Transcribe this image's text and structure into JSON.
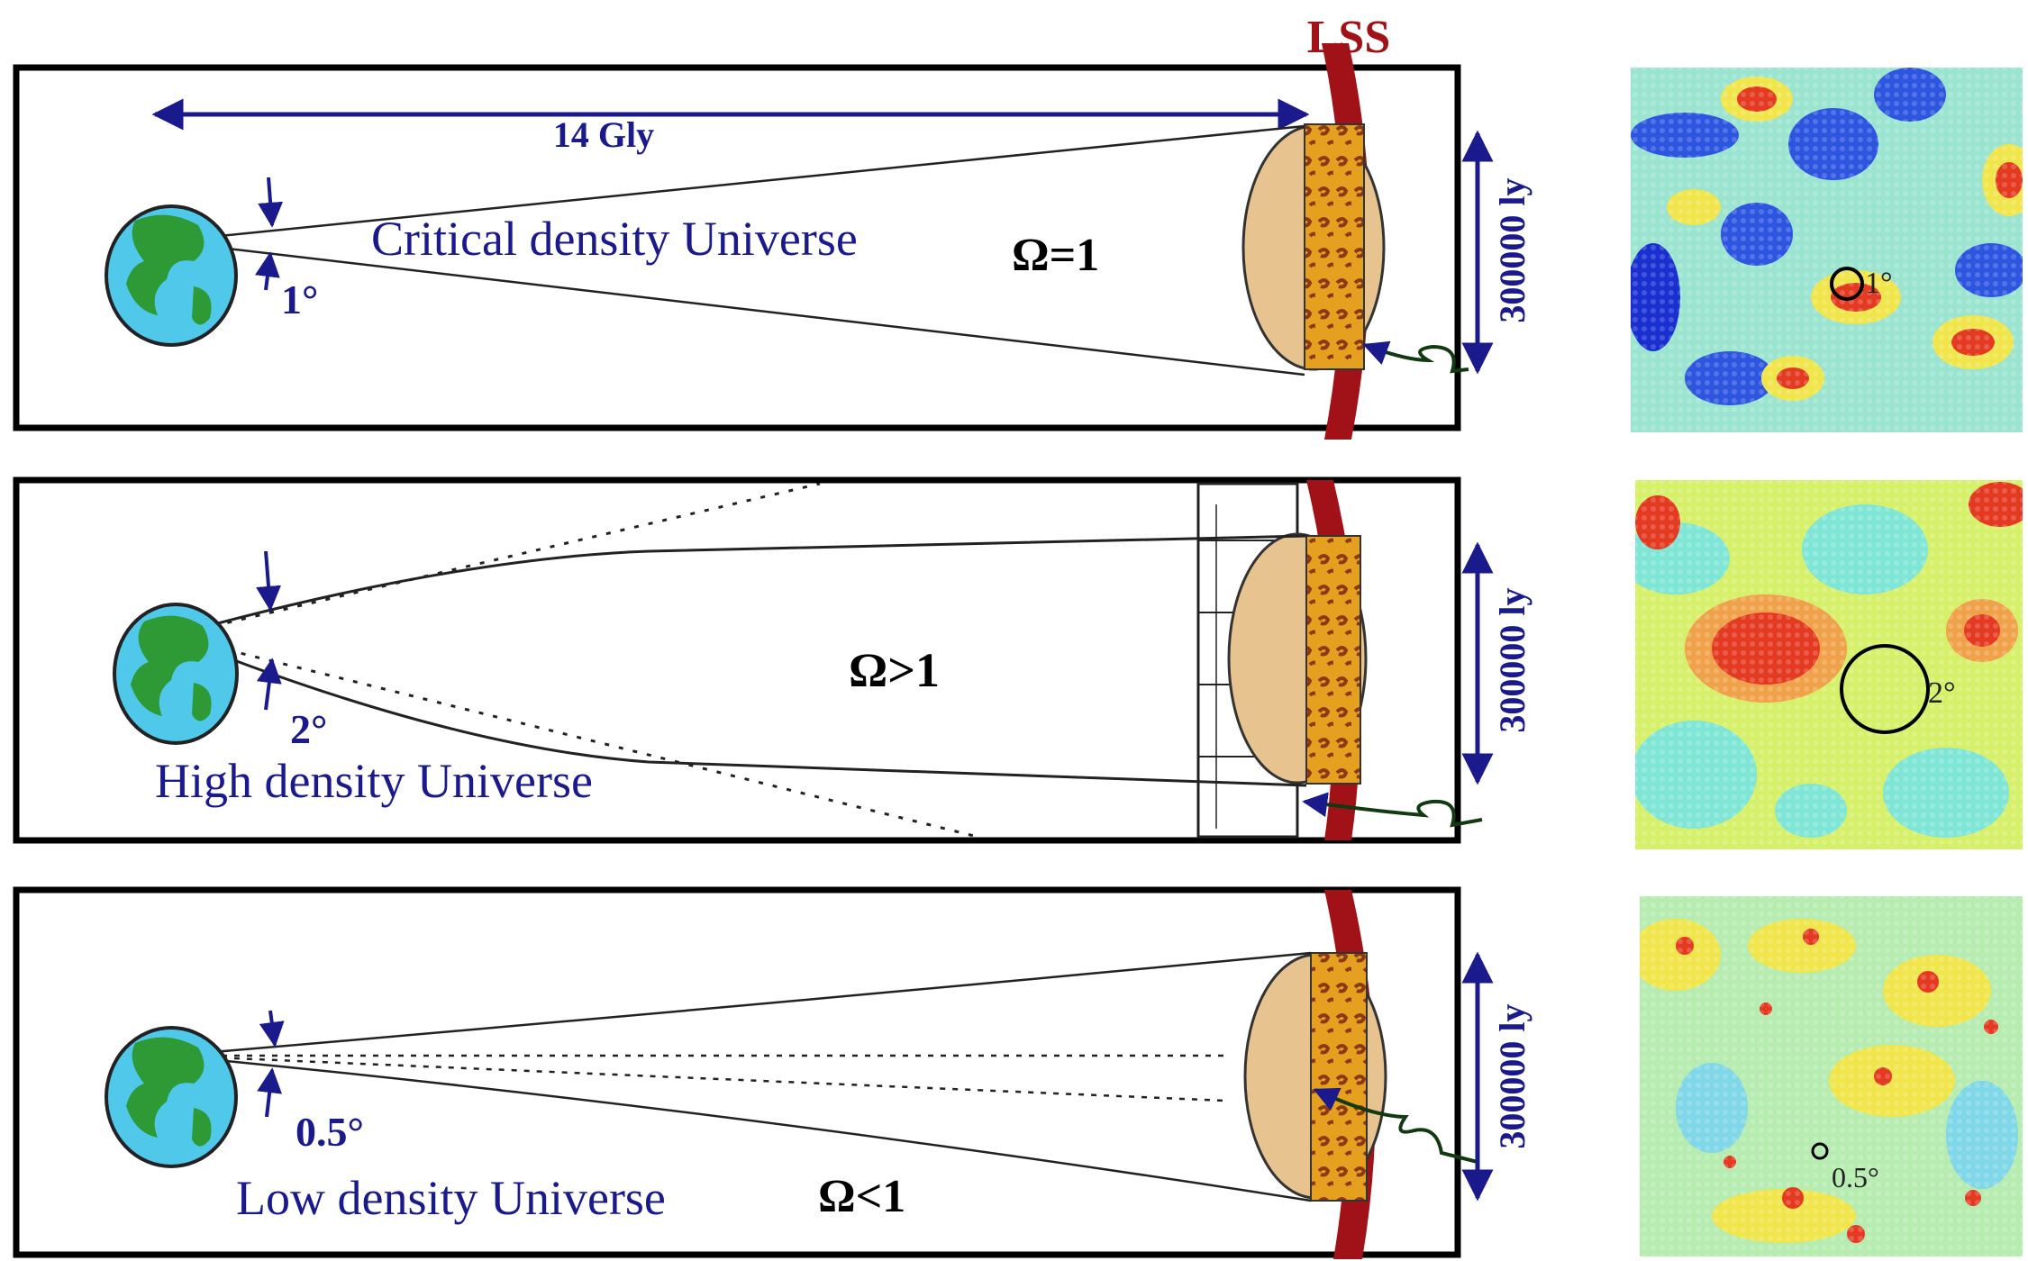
{
  "lss_label": "LSS",
  "distance_label": "14 Gly",
  "colors": {
    "navy": "#1a1a8c",
    "lss": "#a11218",
    "ovoid": "#e7c48f",
    "strip": "#e6a020",
    "earth_ocean": "#4fc8ea",
    "earth_land": "#2d9a36"
  },
  "panels": [
    {
      "label": "Critical density Universe",
      "omega": "Ω=1",
      "angle": "1°",
      "size_label": "300000 ly",
      "map_label": "1°"
    },
    {
      "label": "High density Universe",
      "omega": "Ω>1",
      "angle": "2°",
      "size_label": "300000 ly",
      "map_label": "2°"
    },
    {
      "label": "Low density Universe",
      "omega": "Ω<1",
      "angle": "0.5°",
      "size_label": "300000 ly",
      "map_label": "0.5°"
    }
  ]
}
